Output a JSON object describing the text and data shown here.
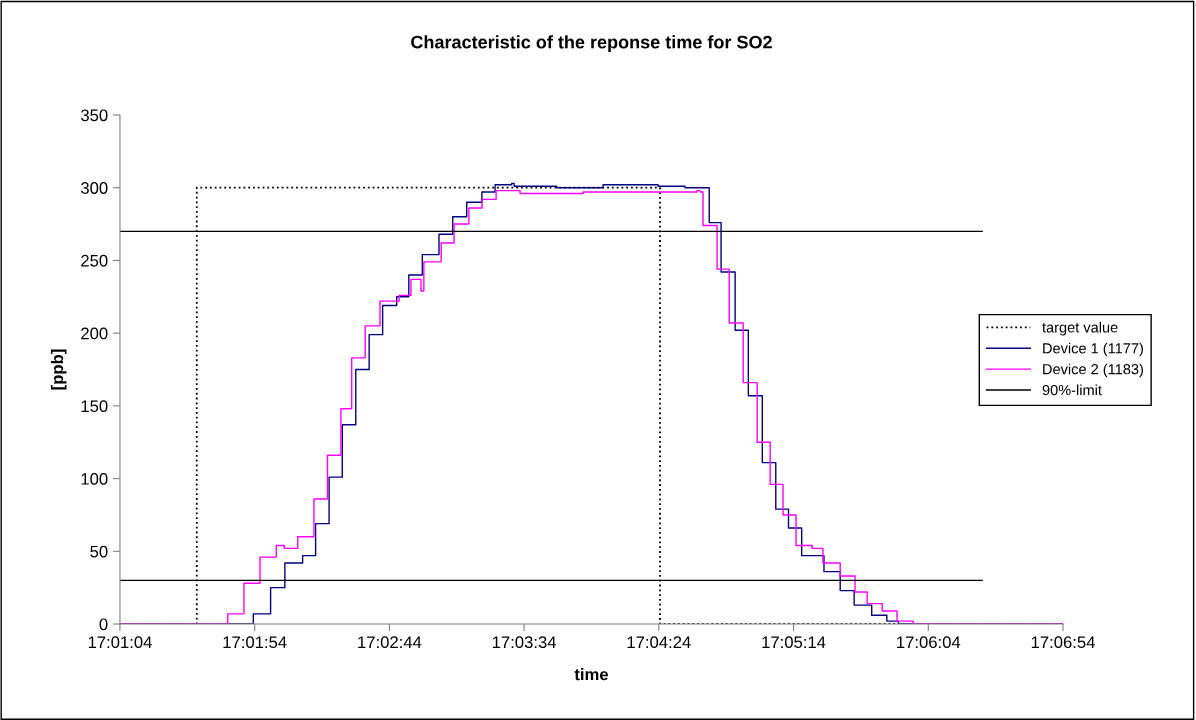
{
  "chart_data": {
    "type": "step",
    "title": "Characteristic of the reponse time for SO2",
    "xlabel": "time",
    "ylabel": "[ppb]",
    "xlim": [
      17.01778,
      17.115
    ],
    "ylim": [
      0,
      350
    ],
    "xticks": [
      {
        "value": 17.01778,
        "label": "17:01:04"
      },
      {
        "value": 17.03167,
        "label": "17:01:54"
      },
      {
        "value": 17.04556,
        "label": "17:02:44"
      },
      {
        "value": 17.05944,
        "label": "17:03:34"
      },
      {
        "value": 17.07333,
        "label": "17:04:24"
      },
      {
        "value": 17.08722,
        "label": "17:05:14"
      },
      {
        "value": 17.10111,
        "label": "17:06:04"
      },
      {
        "value": 17.115,
        "label": "17:06:54"
      }
    ],
    "yticks": [
      0,
      50,
      100,
      150,
      200,
      250,
      300,
      350
    ],
    "grid": false,
    "legend": "right",
    "marker": "none",
    "series": [
      {
        "name": "target value",
        "line_style": "dotted",
        "color": "#000000",
        "x": [
          17.01778,
          17.0257,
          17.07345,
          17.115
        ],
        "values": [
          0,
          300,
          0,
          0
        ]
      },
      {
        "name": "Device 1 (1177)",
        "line_style": "solid",
        "color": "#000080",
        "x": [
          17.01778,
          17.03153,
          17.03331,
          17.03478,
          17.03661,
          17.03795,
          17.03934,
          17.0407,
          17.04209,
          17.04347,
          17.04486,
          17.04631,
          17.04756,
          17.04895,
          17.05067,
          17.05209,
          17.05353,
          17.05509,
          17.05645,
          17.05817,
          17.05842,
          17.06281,
          17.06759,
          17.07325,
          17.07603,
          17.07853,
          17.07975,
          17.0812,
          17.08256,
          17.084,
          17.08539,
          17.0867,
          17.08806,
          17.09036,
          17.09203,
          17.09347,
          17.09528,
          17.09684,
          17.09803,
          17.115
        ],
        "values": [
          0,
          7,
          25,
          42,
          47,
          69,
          101,
          137,
          175,
          199,
          219,
          225,
          240,
          254,
          268,
          280,
          290,
          297,
          302,
          303,
          301,
          300,
          302,
          301,
          300,
          276,
          242,
          202,
          157,
          111,
          79,
          66,
          47,
          36,
          23,
          13,
          6,
          2,
          0,
          0
        ]
      },
      {
        "name": "Device 2 (1183)",
        "line_style": "solid",
        "color": "#ff00ff",
        "x": [
          17.01778,
          17.02889,
          17.03056,
          17.03222,
          17.03389,
          17.03472,
          17.03611,
          17.03778,
          17.03917,
          17.04056,
          17.04167,
          17.04306,
          17.04459,
          17.04656,
          17.04778,
          17.04881,
          17.04911,
          17.05089,
          17.05222,
          17.05375,
          17.05511,
          17.05656,
          17.05903,
          17.06553,
          17.07728,
          17.07759,
          17.07789,
          17.07934,
          17.08059,
          17.08203,
          17.08347,
          17.08481,
          17.08614,
          17.08748,
          17.08914,
          17.09025,
          17.09203,
          17.09356,
          17.09481,
          17.09636,
          17.09789,
          17.09956,
          17.115
        ],
        "values": [
          0,
          7,
          28,
          46,
          54,
          52,
          60,
          86,
          116,
          148,
          183,
          205,
          222,
          226,
          237,
          229,
          249,
          262,
          275,
          286,
          292,
          298,
          296,
          297,
          298,
          297,
          274,
          244,
          207,
          166,
          125,
          96,
          75,
          54,
          52,
          42,
          33,
          22,
          14,
          9,
          2,
          0,
          0
        ]
      },
      {
        "name": "90%-limit",
        "type": "line",
        "line_style": "solid",
        "color": "#000000",
        "x": [
          17.01778,
          17.10667
        ],
        "values": [
          270,
          270
        ]
      },
      {
        "type": "line",
        "line_style": "solid",
        "color": "#000000",
        "x": [
          17.01778,
          17.10667
        ],
        "values": [
          30,
          30
        ]
      }
    ]
  }
}
